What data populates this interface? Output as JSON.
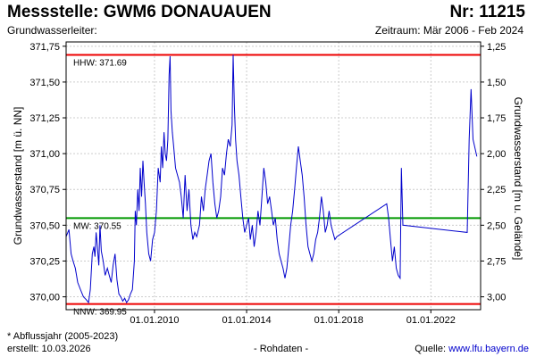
{
  "header": {
    "title": "Messstelle: GWM6 DONAUAUEN",
    "nr": "Nr: 11215",
    "aquifer": "Grundwasserleiter:",
    "period": "Zeitraum: Mär 2006 - Feb 2024"
  },
  "footer": {
    "footnote": "* Abflussjahr (2005-2023)",
    "created": "erstellt:  10.03.2026",
    "rawdata": "- Rohdaten -",
    "source_label": "Quelle: ",
    "source_url": "www.lfu.bayern.de"
  },
  "colors": {
    "series": "#0000cc",
    "hhw": "#ee0000",
    "nnw": "#ee0000",
    "mw": "#009900",
    "grid": "#cccccc"
  },
  "chart_data": {
    "type": "line",
    "ylabel_left": "Grundwasserstand [m ü. NN]",
    "ylabel_right": "Grundwasserstand [m u. Gelände]",
    "ylim": [
      369.91,
      371.78
    ],
    "xlim": [
      "2006-03-01",
      "2024-02-29"
    ],
    "y_ticks": [
      370.0,
      370.25,
      370.5,
      370.75,
      371.0,
      371.25,
      371.5,
      371.75
    ],
    "y_tick_labels": [
      "370,00",
      "370,25",
      "370,50",
      "370,75",
      "371,00",
      "371,25",
      "371,50",
      "371,75"
    ],
    "right_ticks": [
      1.25,
      1.5,
      1.75,
      2.0,
      2.25,
      2.5,
      2.75,
      3.0
    ],
    "right_tick_labels": [
      "1,25",
      "1,50",
      "1,75",
      "2,00",
      "2,25",
      "2,50",
      "2,75",
      "3,00"
    ],
    "ground_level": 373.0,
    "x_ticks": [
      "2010-01-01",
      "2014-01-01",
      "2018-01-01",
      "2022-01-01"
    ],
    "x_tick_labels": [
      "01.01.2010",
      "01.01.2014",
      "01.01.2018",
      "01.01.2022"
    ],
    "grid": true,
    "reference_lines": [
      {
        "label": "HHW: 371.69",
        "value": 371.69,
        "kind": "hhw"
      },
      {
        "label": "MW: 370.55",
        "value": 370.55,
        "kind": "mw"
      },
      {
        "label": "NNW: 369.95",
        "value": 369.95,
        "kind": "nnw"
      }
    ],
    "series": [
      {
        "points": [
          [
            "2006-03-01",
            370.42
          ],
          [
            "2006-04-15",
            370.47
          ],
          [
            "2006-05-20",
            370.3
          ],
          [
            "2006-06-20",
            370.25
          ],
          [
            "2006-07-25",
            370.2
          ],
          [
            "2006-09-01",
            370.1
          ],
          [
            "2006-10-15",
            370.05
          ],
          [
            "2006-12-01",
            370.0
          ],
          [
            "2007-01-15",
            369.98
          ],
          [
            "2007-02-20",
            369.96
          ],
          [
            "2007-03-20",
            370.05
          ],
          [
            "2007-04-20",
            370.3
          ],
          [
            "2007-05-15",
            370.35
          ],
          [
            "2007-06-01",
            370.28
          ],
          [
            "2007-06-20",
            370.45
          ],
          [
            "2007-07-10",
            370.35
          ],
          [
            "2007-08-01",
            370.22
          ],
          [
            "2007-08-20",
            370.5
          ],
          [
            "2007-09-10",
            370.32
          ],
          [
            "2007-10-10",
            370.25
          ],
          [
            "2007-11-10",
            370.15
          ],
          [
            "2007-12-15",
            370.2
          ],
          [
            "2008-01-15",
            370.15
          ],
          [
            "2008-02-15",
            370.1
          ],
          [
            "2008-03-15",
            370.22
          ],
          [
            "2008-04-15",
            370.3
          ],
          [
            "2008-05-15",
            370.12
          ],
          [
            "2008-06-15",
            370.02
          ],
          [
            "2008-07-15",
            370.0
          ],
          [
            "2008-08-15",
            369.97
          ],
          [
            "2008-09-15",
            369.99
          ],
          [
            "2008-10-15",
            369.96
          ],
          [
            "2008-11-15",
            369.98
          ],
          [
            "2008-12-15",
            370.02
          ],
          [
            "2009-01-15",
            370.05
          ],
          [
            "2009-02-15",
            370.25
          ],
          [
            "2009-03-01",
            370.6
          ],
          [
            "2009-03-20",
            370.5
          ],
          [
            "2009-04-10",
            370.75
          ],
          [
            "2009-05-01",
            370.6
          ],
          [
            "2009-05-20",
            370.9
          ],
          [
            "2009-06-10",
            370.7
          ],
          [
            "2009-07-01",
            370.95
          ],
          [
            "2009-07-20",
            370.8
          ],
          [
            "2009-08-10",
            370.65
          ],
          [
            "2009-09-01",
            370.45
          ],
          [
            "2009-10-01",
            370.3
          ],
          [
            "2009-11-01",
            370.25
          ],
          [
            "2009-12-01",
            370.4
          ],
          [
            "2010-01-01",
            370.45
          ],
          [
            "2010-02-01",
            370.6
          ],
          [
            "2010-03-01",
            370.9
          ],
          [
            "2010-04-01",
            370.8
          ],
          [
            "2010-04-20",
            371.05
          ],
          [
            "2010-05-10",
            370.9
          ],
          [
            "2010-06-01",
            371.15
          ],
          [
            "2010-06-20",
            371.0
          ],
          [
            "2010-07-10",
            370.95
          ],
          [
            "2010-08-01",
            371.1
          ],
          [
            "2010-08-20",
            371.55
          ],
          [
            "2010-09-05",
            371.68
          ],
          [
            "2010-09-20",
            371.3
          ],
          [
            "2010-10-10",
            371.15
          ],
          [
            "2010-11-01",
            371.05
          ],
          [
            "2010-12-01",
            370.9
          ],
          [
            "2011-01-01",
            370.85
          ],
          [
            "2011-02-01",
            370.8
          ],
          [
            "2011-03-01",
            370.7
          ],
          [
            "2011-04-01",
            370.55
          ],
          [
            "2011-05-01",
            370.85
          ],
          [
            "2011-06-01",
            370.6
          ],
          [
            "2011-07-01",
            370.75
          ],
          [
            "2011-08-01",
            370.5
          ],
          [
            "2011-09-01",
            370.4
          ],
          [
            "2011-10-01",
            370.45
          ],
          [
            "2011-11-01",
            370.42
          ],
          [
            "2011-12-15",
            370.5
          ],
          [
            "2012-01-15",
            370.7
          ],
          [
            "2012-02-15",
            370.6
          ],
          [
            "2012-03-15",
            370.75
          ],
          [
            "2012-04-15",
            370.85
          ],
          [
            "2012-05-15",
            370.95
          ],
          [
            "2012-06-15",
            371.0
          ],
          [
            "2012-07-15",
            370.8
          ],
          [
            "2012-08-15",
            370.65
          ],
          [
            "2012-09-15",
            370.55
          ],
          [
            "2012-10-15",
            370.6
          ],
          [
            "2012-11-15",
            370.7
          ],
          [
            "2012-12-15",
            370.9
          ],
          [
            "2013-01-15",
            370.85
          ],
          [
            "2013-02-15",
            371.0
          ],
          [
            "2013-03-15",
            371.1
          ],
          [
            "2013-04-15",
            371.05
          ],
          [
            "2013-05-15",
            371.2
          ],
          [
            "2013-06-01",
            371.69
          ],
          [
            "2013-06-20",
            371.35
          ],
          [
            "2013-07-10",
            371.1
          ],
          [
            "2013-08-01",
            370.95
          ],
          [
            "2013-09-01",
            370.85
          ],
          [
            "2013-10-01",
            370.7
          ],
          [
            "2013-11-01",
            370.55
          ],
          [
            "2013-12-01",
            370.45
          ],
          [
            "2014-01-01",
            370.5
          ],
          [
            "2014-02-01",
            370.55
          ],
          [
            "2014-03-01",
            370.4
          ],
          [
            "2014-04-01",
            370.5
          ],
          [
            "2014-05-01",
            370.35
          ],
          [
            "2014-06-01",
            370.45
          ],
          [
            "2014-07-01",
            370.6
          ],
          [
            "2014-08-01",
            370.5
          ],
          [
            "2014-09-01",
            370.7
          ],
          [
            "2014-10-01",
            370.9
          ],
          [
            "2014-11-01",
            370.8
          ],
          [
            "2014-12-01",
            370.65
          ],
          [
            "2015-01-01",
            370.7
          ],
          [
            "2015-02-01",
            370.6
          ],
          [
            "2015-03-01",
            370.5
          ],
          [
            "2015-04-01",
            370.55
          ],
          [
            "2015-05-01",
            370.4
          ],
          [
            "2015-06-01",
            370.3
          ],
          [
            "2015-07-01",
            370.25
          ],
          [
            "2015-08-01",
            370.2
          ],
          [
            "2015-09-01",
            370.13
          ],
          [
            "2015-10-01",
            370.2
          ],
          [
            "2015-11-01",
            370.35
          ],
          [
            "2015-12-01",
            370.5
          ],
          [
            "2016-01-01",
            370.6
          ],
          [
            "2016-02-01",
            370.75
          ],
          [
            "2016-03-01",
            370.9
          ],
          [
            "2016-04-01",
            371.05
          ],
          [
            "2016-05-01",
            370.95
          ],
          [
            "2016-06-01",
            370.85
          ],
          [
            "2016-07-01",
            370.7
          ],
          [
            "2016-08-01",
            370.5
          ],
          [
            "2016-09-01",
            370.35
          ],
          [
            "2016-10-01",
            370.3
          ],
          [
            "2016-11-01",
            370.25
          ],
          [
            "2016-12-01",
            370.3
          ],
          [
            "2017-01-01",
            370.4
          ],
          [
            "2017-02-01",
            370.45
          ],
          [
            "2017-03-01",
            370.55
          ],
          [
            "2017-04-01",
            370.7
          ],
          [
            "2017-05-01",
            370.6
          ],
          [
            "2017-06-01",
            370.45
          ],
          [
            "2017-07-01",
            370.5
          ],
          [
            "2017-08-01",
            370.6
          ],
          [
            "2017-09-01",
            370.5
          ],
          [
            "2017-10-01",
            370.45
          ],
          [
            "2017-11-01",
            370.4
          ],
          [
            "2017-12-01",
            370.42
          ],
          [
            "2020-02-01",
            370.65
          ],
          [
            "2020-03-01",
            370.55
          ],
          [
            "2020-04-01",
            370.4
          ],
          [
            "2020-05-01",
            370.25
          ],
          [
            "2020-06-01",
            370.35
          ],
          [
            "2020-07-01",
            370.2
          ],
          [
            "2020-08-01",
            370.15
          ],
          [
            "2020-09-01",
            370.13
          ],
          [
            "2020-09-20",
            370.9
          ],
          [
            "2020-10-15",
            370.5
          ],
          [
            "2023-08-01",
            370.45
          ],
          [
            "2023-09-01",
            371.1
          ],
          [
            "2023-10-01",
            371.45
          ],
          [
            "2023-11-01",
            371.1
          ],
          [
            "2024-01-01",
            370.98
          ]
        ]
      }
    ]
  }
}
